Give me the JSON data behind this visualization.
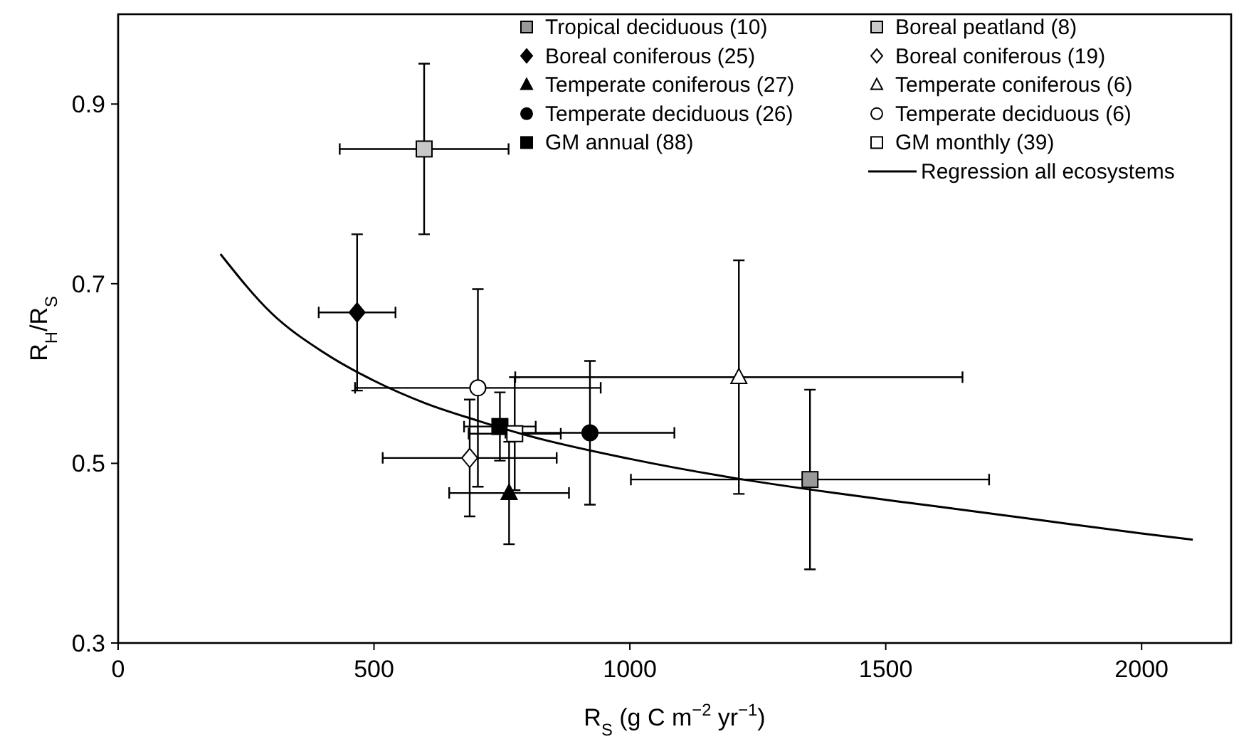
{
  "chart_data": {
    "type": "scatter",
    "xlabel": "R$_{S}$ (g C m$^{−2}$ yr$^{−1}$)",
    "ylabel": "R$_{H}$/R$_{S}$",
    "xlim": [
      0,
      2175
    ],
    "ylim": [
      0.3,
      1.0
    ],
    "xticks": [
      0,
      500,
      1000,
      1500,
      2000
    ],
    "yticks": [
      0.3,
      0.5,
      0.7,
      0.9
    ],
    "grid": false,
    "legend": "top right",
    "series": [
      {
        "name": "Tropical deciduous (10)",
        "color": "#999999",
        "marker": "square",
        "x": [
          1352
        ],
        "values": [
          0.482
        ],
        "xerrors": [
          350
        ],
        "errors": [
          0.1
        ]
      },
      {
        "name": "Boreal coniferous (25)",
        "color": "#000000",
        "marker": "diamond",
        "x": [
          467
        ],
        "values": [
          0.668
        ],
        "xerrors": [
          75
        ],
        "errors": [
          0.087
        ]
      },
      {
        "name": "Temperate coniferous (27)",
        "color": "#000000",
        "marker": "triangle",
        "x": [
          764
        ],
        "values": [
          0.467
        ],
        "xerrors": [
          117
        ],
        "errors": [
          0.057
        ]
      },
      {
        "name": "Temperate deciduous (26)",
        "color": "#000000",
        "marker": "circle",
        "x": [
          922
        ],
        "values": [
          0.534
        ],
        "xerrors": [
          165
        ],
        "errors": [
          0.08
        ]
      },
      {
        "name": "GM annual (88)",
        "color": "#000000",
        "marker": "square",
        "x": [
          746
        ],
        "values": [
          0.541
        ],
        "xerrors": [
          70
        ],
        "errors": [
          0.038
        ]
      },
      {
        "name": "Boreal peatland (8)",
        "color": "#c8c8c8",
        "marker": "square",
        "x": [
          598
        ],
        "values": [
          0.85
        ],
        "xerrors": [
          165
        ],
        "errors": [
          0.095
        ]
      },
      {
        "name": "Boreal coniferous (19)",
        "color": "#ffffff",
        "marker": "diamond",
        "x": [
          687
        ],
        "values": [
          0.506
        ],
        "xerrors": [
          170
        ],
        "errors": [
          0.065
        ]
      },
      {
        "name": "Temperate coniferous (6)",
        "color": "#ffffff",
        "marker": "triangle",
        "x": [
          1213
        ],
        "values": [
          0.596
        ],
        "xerrors": [
          437
        ],
        "errors": [
          0.13
        ]
      },
      {
        "name": "Temperate deciduous (6)",
        "color": "#ffffff",
        "marker": "circle",
        "x": [
          703
        ],
        "values": [
          0.584
        ],
        "xerrors": [
          240
        ],
        "errors": [
          0.11
        ]
      },
      {
        "name": "GM monthly (39)",
        "color": "#ffffff",
        "marker": "square",
        "x": [
          775
        ],
        "values": [
          0.533
        ],
        "xerrors": [
          90
        ],
        "errors": [
          0.063
        ]
      },
      {
        "name": "Regression all ecosystems",
        "type": "line",
        "color": "#000000",
        "line_style": "solid",
        "x": [
          200,
          300,
          400,
          500,
          600,
          700,
          800,
          1000,
          1200,
          1400,
          1600,
          1800,
          2000,
          2100
        ],
        "values": [
          0.733,
          0.667,
          0.624,
          0.592,
          0.567,
          0.548,
          0.531,
          0.505,
          0.484,
          0.467,
          0.452,
          0.437,
          0.422,
          0.415
        ]
      }
    ]
  }
}
